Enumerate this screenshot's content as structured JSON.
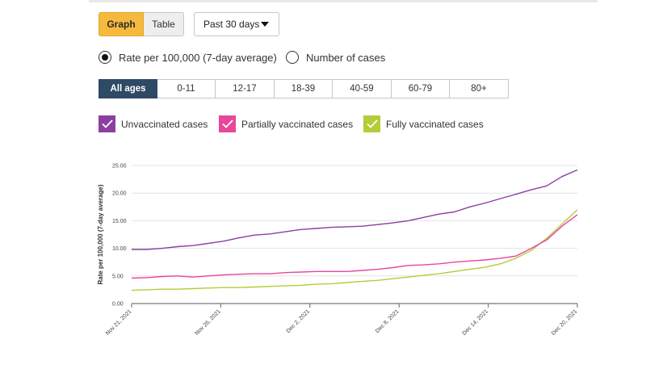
{
  "view_toggle": {
    "graph_label": "Graph",
    "table_label": "Table"
  },
  "period": {
    "selected": "Past 30 days"
  },
  "measure": {
    "rate_label": "Rate per 100,000 (7-day average)",
    "cases_label": "Number of cases"
  },
  "age_groups": [
    "All ages",
    "0-11",
    "12-17",
    "18-39",
    "40-59",
    "60-79",
    "80+"
  ],
  "colors": {
    "accent": "#f5b93d",
    "active_tab": "#2f4a64",
    "unvaccinated": "#8b3fa0",
    "partially": "#e8479a",
    "fully": "#b5cc3a"
  },
  "legend": [
    {
      "label": "Unvaccinated cases",
      "color": "#8b3fa0",
      "icon": "check-icon"
    },
    {
      "label": "Partially vaccinated cases",
      "color": "#e8479a",
      "icon": "check-icon"
    },
    {
      "label": "Fully vaccinated cases",
      "color": "#b5cc3a",
      "icon": "check-icon"
    }
  ],
  "chart_data": {
    "type": "line",
    "ylabel": "Rate per 100,000 (7-day average)",
    "ylim": [
      0,
      25
    ],
    "yticks": [
      "0.00",
      "5.00",
      "10.00",
      "15.00",
      "20.00",
      "25.00"
    ],
    "xticks": [
      "Nov 21, 2021",
      "Nov 26, 2021",
      "Dec 2, 2021",
      "Dec 8, 2021",
      "Dec 14, 2021",
      "Dec 20, 2021"
    ],
    "grid": true,
    "x": [
      "Nov 21",
      "Nov 22",
      "Nov 23",
      "Nov 24",
      "Nov 25",
      "Nov 26",
      "Nov 27",
      "Nov 28",
      "Nov 29",
      "Nov 30",
      "Dec 1",
      "Dec 2",
      "Dec 3",
      "Dec 4",
      "Dec 5",
      "Dec 6",
      "Dec 7",
      "Dec 8",
      "Dec 9",
      "Dec 10",
      "Dec 11",
      "Dec 12",
      "Dec 13",
      "Dec 14",
      "Dec 15",
      "Dec 16",
      "Dec 17",
      "Dec 18",
      "Dec 19",
      "Dec 20"
    ],
    "series": [
      {
        "values": [
          9.8,
          9.8,
          10.0,
          10.3,
          10.5,
          10.9,
          11.3,
          11.9,
          12.4,
          12.6,
          13.0,
          13.4,
          13.6,
          13.8,
          13.9,
          14.0,
          14.3,
          14.6,
          15.0,
          15.6,
          16.2,
          16.6,
          17.5,
          18.2,
          19.0,
          19.8,
          20.6,
          21.3,
          23.0,
          24.2
        ]
      },
      {
        "values": [
          4.6,
          4.7,
          4.9,
          5.0,
          4.8,
          5.0,
          5.2,
          5.3,
          5.4,
          5.4,
          5.6,
          5.7,
          5.8,
          5.8,
          5.8,
          6.0,
          6.2,
          6.5,
          6.9,
          7.0,
          7.2,
          7.5,
          7.7,
          7.9,
          8.2,
          8.6,
          10.0,
          11.5,
          14.0,
          16.1
        ]
      },
      {
        "values": [
          2.4,
          2.5,
          2.6,
          2.6,
          2.7,
          2.8,
          2.9,
          2.9,
          3.0,
          3.1,
          3.2,
          3.3,
          3.5,
          3.6,
          3.8,
          4.0,
          4.2,
          4.5,
          4.8,
          5.1,
          5.4,
          5.8,
          6.2,
          6.6,
          7.2,
          8.2,
          9.6,
          11.8,
          14.4,
          17.0
        ]
      }
    ]
  }
}
